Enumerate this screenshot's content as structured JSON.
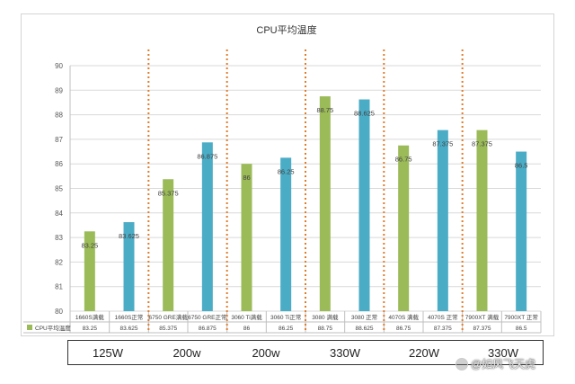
{
  "chart_data": {
    "type": "bar",
    "title": "CPU平均温度",
    "ylim": [
      80,
      90
    ],
    "yticks": [
      80,
      81,
      82,
      83,
      84,
      85,
      86,
      87,
      88,
      89,
      90
    ],
    "grid": true,
    "categories": [
      "1660S满载",
      "1660S正常",
      "6750 GRE满载",
      "6750 GRE正常",
      "3060 Ti满载",
      "3060 Ti正常",
      "3080 满载",
      "3080 正常",
      "4070S 满载",
      "4070S 正常",
      "7900XT 满载",
      "7900XT 正常"
    ],
    "series": [
      {
        "name": "CPU平均温度",
        "values": [
          83.25,
          83.625,
          85.375,
          86.875,
          86,
          86.25,
          88.75,
          88.625,
          86.75,
          87.375,
          87.375,
          86.5
        ]
      }
    ],
    "value_labels": [
      "83.25",
      "83.625",
      "85.375",
      "86.875",
      "86",
      "86.25",
      "88.75",
      "88.625",
      "86.75",
      "87.375",
      "87.375",
      "86.5"
    ],
    "bar_colors": [
      "#9bbb59",
      "#4bacc6"
    ],
    "legend_position": "table-left"
  },
  "power_row": [
    "125W",
    "200w",
    "200w",
    "330W",
    "220W",
    "330W"
  ],
  "watermark": "@如风飞天虎",
  "colors": {
    "green": "#9bbb59",
    "blue": "#4bacc6",
    "divider": "#e07b28",
    "grid": "#d9d9d9"
  }
}
